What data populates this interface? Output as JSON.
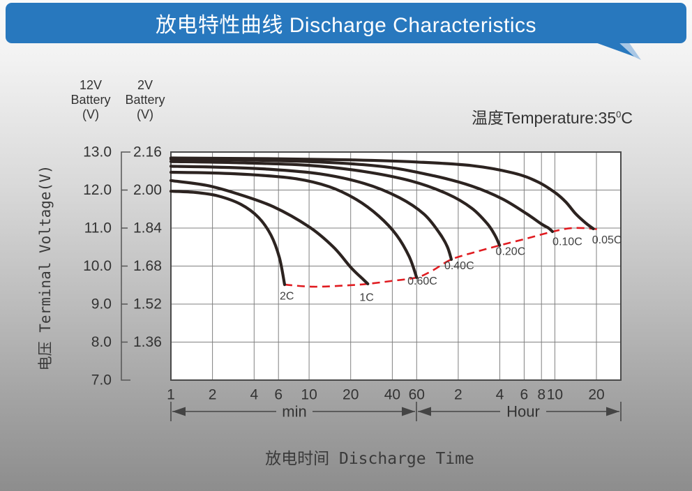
{
  "header": {
    "title": "放电特性曲线 Discharge Characteristics"
  },
  "annotations": {
    "temperature_prefix": "温度Temperature:35",
    "temperature_sup": "0",
    "temperature_suffix": "C"
  },
  "y_axis": {
    "left_unit_lines": [
      "12V",
      "Battery",
      "(V)"
    ],
    "right_unit_lines": [
      "2V",
      "Battery",
      "(V)"
    ],
    "axis_title": "电压 Terminal Voltage(V)",
    "left_tick_labels": [
      "13.0",
      "12.0",
      "11.0",
      "10.0",
      "9.0",
      "8.0",
      "7.0"
    ],
    "right_tick_labels": [
      "2.16",
      "2.00",
      "1.84",
      "1.68",
      "1.52",
      "1.36"
    ]
  },
  "x_axis": {
    "axis_title": "放电时间 Discharge Time",
    "minute_section_label": "min",
    "hour_section_label": "Hour",
    "minute_ticks": [
      {
        "label": "1",
        "minutes": 1
      },
      {
        "label": "2",
        "minutes": 2
      },
      {
        "label": "4",
        "minutes": 4
      },
      {
        "label": "6",
        "minutes": 6
      },
      {
        "label": "10",
        "minutes": 10
      },
      {
        "label": "20",
        "minutes": 20
      },
      {
        "label": "40",
        "minutes": 40
      },
      {
        "label": "60",
        "minutes": 60
      }
    ],
    "hour_ticks": [
      {
        "label": "2",
        "minutes": 120
      },
      {
        "label": "4",
        "minutes": 240
      },
      {
        "label": "6",
        "minutes": 360
      },
      {
        "label": "8",
        "minutes": 480
      },
      {
        "label": "10",
        "minutes": 600
      },
      {
        "label": "20",
        "minutes": 1200
      }
    ]
  },
  "chart_data": {
    "type": "line",
    "title": "放电特性曲线 Discharge Characteristics",
    "x_scale": "log",
    "x_unit": "minutes",
    "x_range": [
      1,
      1800
    ],
    "y_axis_2v_range": [
      1.2,
      2.16
    ],
    "y_axis_12v_range": [
      7.0,
      13.0
    ],
    "grid": true,
    "gridline_times_minutes": [
      1,
      2,
      4,
      6,
      10,
      20,
      40,
      60,
      120,
      240,
      360,
      480,
      600,
      1200,
      1800
    ],
    "gridline_voltages_2v": [
      2.16,
      2.0,
      1.84,
      1.68,
      1.52,
      1.36,
      1.2
    ],
    "series": [
      {
        "label": "2C",
        "points": [
          [
            1,
            1.995
          ],
          [
            1.5,
            1.99
          ],
          [
            2.2,
            1.975
          ],
          [
            3.2,
            1.94
          ],
          [
            4.3,
            1.885
          ],
          [
            5.3,
            1.81
          ],
          [
            6.1,
            1.715
          ],
          [
            6.65,
            1.602
          ]
        ],
        "label_pos": [
          6.9,
          1.552
        ]
      },
      {
        "label": "1C",
        "points": [
          [
            1,
            2.04
          ],
          [
            1.8,
            2.02
          ],
          [
            3,
            1.985
          ],
          [
            5.5,
            1.93
          ],
          [
            10,
            1.845
          ],
          [
            15,
            1.76
          ],
          [
            20,
            1.675
          ],
          [
            24.5,
            1.625
          ],
          [
            26.6,
            1.605
          ]
        ],
        "label_pos": [
          26.1,
          1.546
        ]
      },
      {
        "label": "0.60C",
        "points": [
          [
            1,
            2.075
          ],
          [
            2,
            2.072
          ],
          [
            4,
            2.064
          ],
          [
            8,
            2.048
          ],
          [
            14,
            2.014
          ],
          [
            22,
            1.96
          ],
          [
            32,
            1.89
          ],
          [
            43,
            1.81
          ],
          [
            53,
            1.72
          ],
          [
            60,
            1.632
          ]
        ],
        "label_pos": [
          66,
          1.615
        ]
      },
      {
        "label": "0.40C",
        "points": [
          [
            1,
            2.1
          ],
          [
            2,
            2.097
          ],
          [
            5,
            2.088
          ],
          [
            12,
            2.068
          ],
          [
            25,
            2.028
          ],
          [
            45,
            1.968
          ],
          [
            68,
            1.898
          ],
          [
            88,
            1.818
          ],
          [
            100,
            1.762
          ],
          [
            107,
            1.708
          ]
        ],
        "label_pos": [
          122,
          1.68
        ]
      },
      {
        "label": "0.20C",
        "points": [
          [
            1,
            2.12
          ],
          [
            3,
            2.115
          ],
          [
            10,
            2.104
          ],
          [
            25,
            2.078
          ],
          [
            55,
            2.038
          ],
          [
            100,
            1.984
          ],
          [
            150,
            1.924
          ],
          [
            195,
            1.858
          ],
          [
            222,
            1.808
          ],
          [
            239,
            1.767
          ]
        ],
        "label_pos": [
          287,
          1.74
        ]
      },
      {
        "label": "0.10C",
        "points": [
          [
            1,
            2.13
          ],
          [
            3,
            2.127
          ],
          [
            12,
            2.118
          ],
          [
            35,
            2.098
          ],
          [
            80,
            2.06
          ],
          [
            150,
            2.017
          ],
          [
            250,
            1.963
          ],
          [
            380,
            1.898
          ],
          [
            480,
            1.857
          ],
          [
            540,
            1.84
          ],
          [
            577,
            1.825
          ]
        ],
        "label_pos": [
          740,
          1.782
        ]
      },
      {
        "label": "0.05C",
        "points": [
          [
            1,
            2.135
          ],
          [
            5,
            2.132
          ],
          [
            20,
            2.127
          ],
          [
            60,
            2.118
          ],
          [
            150,
            2.103
          ],
          [
            300,
            2.072
          ],
          [
            450,
            2.035
          ],
          [
            600,
            1.99
          ],
          [
            720,
            1.95
          ],
          [
            850,
            1.9
          ],
          [
            1000,
            1.862
          ],
          [
            1140,
            1.837
          ]
        ],
        "label_pos": [
          1430,
          1.788
        ]
      }
    ],
    "cutoff_line": {
      "style": "dashed",
      "points": [
        [
          6.65,
          1.602
        ],
        [
          10.8,
          1.593
        ],
        [
          19.3,
          1.599
        ],
        [
          26.6,
          1.605
        ],
        [
          39,
          1.617
        ],
        [
          60,
          1.632
        ],
        [
          78,
          1.661
        ],
        [
          107,
          1.708
        ],
        [
          157,
          1.738
        ],
        [
          239,
          1.767
        ],
        [
          375,
          1.796
        ],
        [
          577,
          1.825
        ],
        [
          800,
          1.84
        ],
        [
          1140,
          1.837
        ],
        [
          1300,
          1.829
        ]
      ]
    }
  },
  "colors": {
    "header_bg": "#2878be",
    "header_text": "#ffffff",
    "tail_light": "#a9c7e5",
    "curve": "#2c2320",
    "cutoff_red": "#e01b20",
    "grid": "#808080",
    "plot_border": "#4a4a4a",
    "text": "#353535"
  }
}
